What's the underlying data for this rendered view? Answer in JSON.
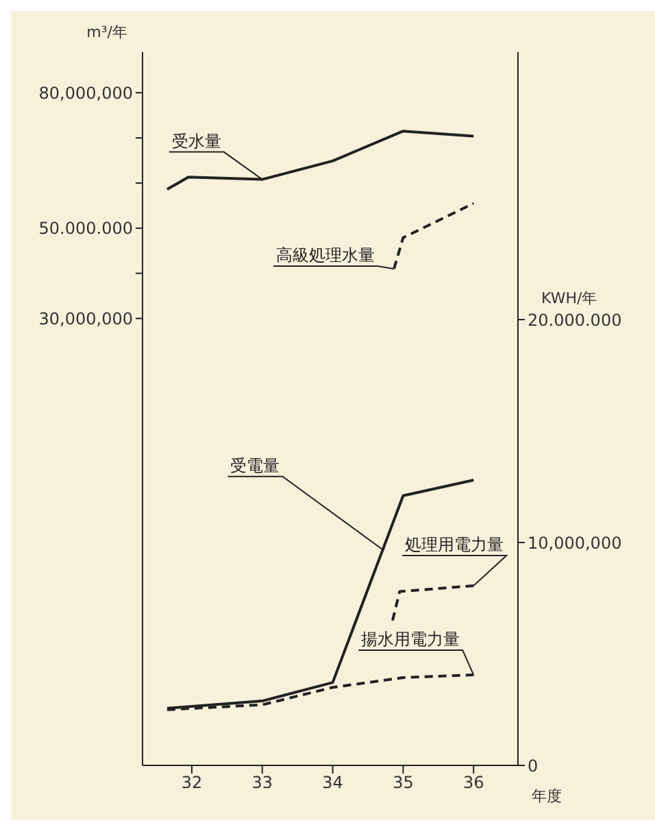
{
  "chart_data": {
    "type": "line",
    "ylabel": "m³/年",
    "y2label": "KWH/年",
    "xlabel": "年度",
    "xlim": [
      31.3,
      36.63
    ],
    "xticks": [
      32,
      33,
      34,
      35,
      36
    ],
    "ylim": [
      -69000000,
      89000000
    ],
    "yticks": [
      {
        "value": 30000000,
        "label": "30,000,000"
      },
      {
        "value": 40000000,
        "label": null
      },
      {
        "value": 50000000,
        "label": "50.000.000"
      },
      {
        "value": 60000000,
        "label": null
      },
      {
        "value": 70000000,
        "label": null
      },
      {
        "value": 80000000,
        "label": "80,000,000"
      }
    ],
    "y2lim": [
      0,
      32000000
    ],
    "y2ticks": [
      0,
      {
        "value": 10000000,
        "label": "10,000,000"
      },
      {
        "value": 20000000,
        "label": "20.000.000"
      }
    ],
    "marker": "none",
    "series": [
      {
        "name": "受水量",
        "color": "#222222",
        "line_style": "solid",
        "x": [
          31.65,
          31.95,
          33,
          34,
          35,
          36
        ],
        "values": [
          58600000,
          61300000,
          60800000,
          64900000,
          71500000,
          70400000
        ]
      },
      {
        "name": "高級処理水量",
        "color": "#222222",
        "line_style": "dashed",
        "x": [
          34.87,
          35,
          36
        ],
        "values": [
          41000000,
          47900000,
          55500000
        ]
      },
      {
        "name": "受電量",
        "color": "#222222",
        "line_style": "solid",
        "axis": "y2",
        "x": [
          31.65,
          33,
          34,
          35,
          36
        ],
        "values": [
          2560000,
          2890000,
          3720000,
          12100000,
          12800000
        ]
      },
      {
        "name": "処理用電力量",
        "color": "#222222",
        "line_style": "dashed",
        "axis": "y2",
        "x": [
          34.85,
          34.95,
          36
        ],
        "values": [
          6500000,
          7800000,
          8060000
        ]
      },
      {
        "name": "揚水用電力量",
        "color": "#222222",
        "line_style": "dashed",
        "axis": "y2",
        "x": [
          31.65,
          33,
          34,
          35,
          36
        ],
        "values": [
          2500000,
          2720000,
          3500000,
          3940000,
          4060000
        ]
      }
    ]
  }
}
